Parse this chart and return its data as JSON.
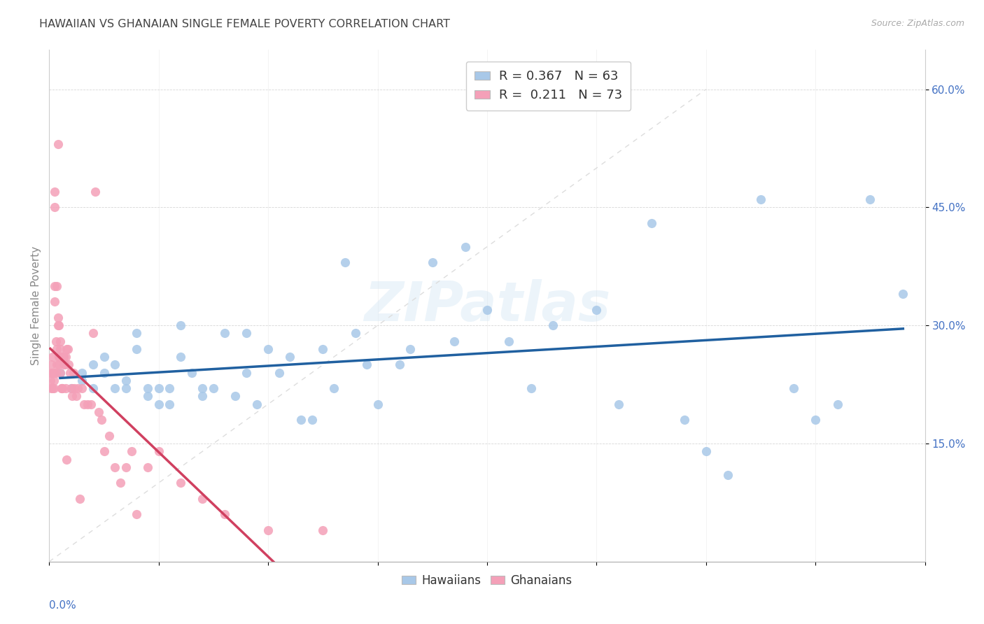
{
  "title": "HAWAIIAN VS GHANAIAN SINGLE FEMALE POVERTY CORRELATION CHART",
  "source": "Source: ZipAtlas.com",
  "ylabel": "Single Female Poverty",
  "ytick_labels": [
    "15.0%",
    "30.0%",
    "45.0%",
    "60.0%"
  ],
  "ytick_values": [
    0.15,
    0.3,
    0.45,
    0.6
  ],
  "xlim": [
    0.0,
    0.8
  ],
  "ylim": [
    0.0,
    0.65
  ],
  "watermark": "ZIPatlas",
  "legend_blue_label": "R = 0.367   N = 63",
  "legend_pink_label": "R =  0.211   N = 73",
  "legend_group_label_1": "Hawaiians",
  "legend_group_label_2": "Ghanaians",
  "blue_color": "#a8c8e8",
  "pink_color": "#f4a0b8",
  "blue_line_color": "#2060a0",
  "pink_line_color": "#d04060",
  "diagonal_line_color": "#dddddd",
  "hawaiians_x": [
    0.01,
    0.02,
    0.03,
    0.03,
    0.04,
    0.04,
    0.05,
    0.05,
    0.06,
    0.06,
    0.07,
    0.07,
    0.08,
    0.08,
    0.09,
    0.09,
    0.1,
    0.1,
    0.11,
    0.11,
    0.12,
    0.12,
    0.13,
    0.14,
    0.14,
    0.15,
    0.16,
    0.17,
    0.18,
    0.18,
    0.19,
    0.2,
    0.21,
    0.22,
    0.23,
    0.24,
    0.25,
    0.26,
    0.27,
    0.28,
    0.29,
    0.3,
    0.32,
    0.33,
    0.35,
    0.37,
    0.38,
    0.4,
    0.42,
    0.44,
    0.46,
    0.5,
    0.52,
    0.55,
    0.58,
    0.6,
    0.62,
    0.65,
    0.68,
    0.7,
    0.72,
    0.75,
    0.78
  ],
  "hawaiians_y": [
    0.24,
    0.22,
    0.24,
    0.23,
    0.25,
    0.22,
    0.24,
    0.26,
    0.22,
    0.25,
    0.22,
    0.23,
    0.27,
    0.29,
    0.22,
    0.21,
    0.2,
    0.22,
    0.2,
    0.22,
    0.3,
    0.26,
    0.24,
    0.22,
    0.21,
    0.22,
    0.29,
    0.21,
    0.24,
    0.29,
    0.2,
    0.27,
    0.24,
    0.26,
    0.18,
    0.18,
    0.27,
    0.22,
    0.38,
    0.29,
    0.25,
    0.2,
    0.25,
    0.27,
    0.38,
    0.28,
    0.4,
    0.32,
    0.28,
    0.22,
    0.3,
    0.32,
    0.2,
    0.43,
    0.18,
    0.14,
    0.11,
    0.46,
    0.22,
    0.18,
    0.2,
    0.46,
    0.34
  ],
  "ghanaians_x": [
    0.001,
    0.001,
    0.002,
    0.002,
    0.003,
    0.003,
    0.003,
    0.004,
    0.004,
    0.004,
    0.005,
    0.005,
    0.005,
    0.005,
    0.006,
    0.006,
    0.007,
    0.007,
    0.007,
    0.008,
    0.008,
    0.008,
    0.009,
    0.009,
    0.009,
    0.01,
    0.01,
    0.01,
    0.01,
    0.011,
    0.011,
    0.012,
    0.012,
    0.013,
    0.013,
    0.014,
    0.014,
    0.015,
    0.015,
    0.016,
    0.016,
    0.017,
    0.018,
    0.019,
    0.02,
    0.021,
    0.022,
    0.023,
    0.025,
    0.026,
    0.028,
    0.03,
    0.032,
    0.035,
    0.038,
    0.04,
    0.042,
    0.045,
    0.048,
    0.05,
    0.055,
    0.06,
    0.065,
    0.07,
    0.075,
    0.08,
    0.09,
    0.1,
    0.12,
    0.14,
    0.16,
    0.2,
    0.25
  ],
  "ghanaians_y": [
    0.24,
    0.23,
    0.25,
    0.22,
    0.24,
    0.26,
    0.22,
    0.24,
    0.23,
    0.22,
    0.47,
    0.45,
    0.35,
    0.33,
    0.28,
    0.24,
    0.35,
    0.27,
    0.25,
    0.53,
    0.31,
    0.3,
    0.26,
    0.25,
    0.3,
    0.26,
    0.24,
    0.28,
    0.27,
    0.22,
    0.22,
    0.22,
    0.26,
    0.26,
    0.26,
    0.25,
    0.25,
    0.26,
    0.22,
    0.27,
    0.13,
    0.27,
    0.25,
    0.24,
    0.22,
    0.21,
    0.24,
    0.22,
    0.21,
    0.22,
    0.08,
    0.22,
    0.2,
    0.2,
    0.2,
    0.29,
    0.47,
    0.19,
    0.18,
    0.14,
    0.16,
    0.12,
    0.1,
    0.12,
    0.14,
    0.06,
    0.12,
    0.14,
    0.1,
    0.08,
    0.06,
    0.04,
    0.04
  ]
}
